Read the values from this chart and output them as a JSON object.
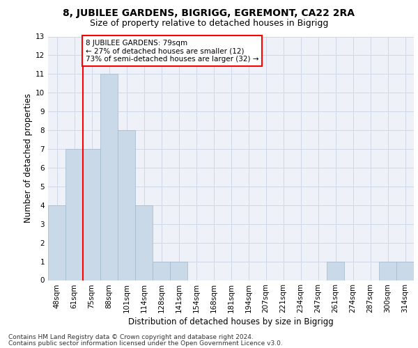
{
  "title1": "8, JUBILEE GARDENS, BIGRIGG, EGREMONT, CA22 2RA",
  "title2": "Size of property relative to detached houses in Bigrigg",
  "xlabel": "Distribution of detached houses by size in Bigrigg",
  "ylabel": "Number of detached properties",
  "categories": [
    "48sqm",
    "61sqm",
    "75sqm",
    "88sqm",
    "101sqm",
    "114sqm",
    "128sqm",
    "141sqm",
    "154sqm",
    "168sqm",
    "181sqm",
    "194sqm",
    "207sqm",
    "221sqm",
    "234sqm",
    "247sqm",
    "261sqm",
    "274sqm",
    "287sqm",
    "300sqm",
    "314sqm"
  ],
  "values": [
    4,
    7,
    7,
    11,
    8,
    4,
    1,
    1,
    0,
    0,
    0,
    0,
    0,
    0,
    0,
    0,
    1,
    0,
    0,
    1,
    1
  ],
  "bar_color": "#c9d9e8",
  "bar_edge_color": "#a0b8cc",
  "redline_index": 1.5,
  "annotation_text": "8 JUBILEE GARDENS: 79sqm\n← 27% of detached houses are smaller (12)\n73% of semi-detached houses are larger (32) →",
  "annotation_box_color": "white",
  "annotation_box_edge_color": "red",
  "redline_color": "red",
  "footer1": "Contains HM Land Registry data © Crown copyright and database right 2024.",
  "footer2": "Contains public sector information licensed under the Open Government Licence v3.0.",
  "ylim": [
    0,
    13
  ],
  "yticks": [
    0,
    1,
    2,
    3,
    4,
    5,
    6,
    7,
    8,
    9,
    10,
    11,
    12,
    13
  ],
  "grid_color": "#d0d8e8",
  "bg_color": "#eef2f8",
  "title1_fontsize": 10,
  "title2_fontsize": 9,
  "xlabel_fontsize": 8.5,
  "ylabel_fontsize": 8.5,
  "tick_fontsize": 7.5,
  "footer_fontsize": 6.5,
  "annot_fontsize": 7.5
}
